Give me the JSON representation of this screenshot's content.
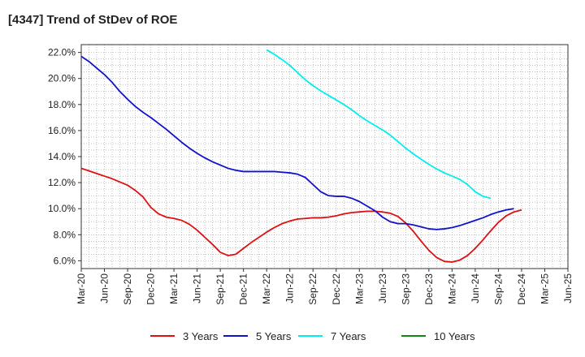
{
  "chart_data": {
    "type": "line",
    "title": "[4347]  Trend of StDev of ROE",
    "xlabel": "",
    "ylabel": "",
    "x_ticks": [
      "Mar-20",
      "Jun-20",
      "Sep-20",
      "Dec-20",
      "Mar-21",
      "Jun-21",
      "Sep-21",
      "Dec-21",
      "Mar-22",
      "Jun-22",
      "Sep-22",
      "Dec-22",
      "Mar-23",
      "Jun-23",
      "Sep-23",
      "Dec-23",
      "Mar-24",
      "Jun-24",
      "Sep-24",
      "Dec-24",
      "Mar-25",
      "Jun-25"
    ],
    "y_ticks": [
      "6.0%",
      "8.0%",
      "10.0%",
      "12.0%",
      "14.0%",
      "16.0%",
      "18.0%",
      "20.0%",
      "22.0%"
    ],
    "ylim": [
      5.4,
      22.6
    ],
    "grid": true,
    "legend_position": "bottom",
    "series": [
      {
        "name": "3 Years",
        "color": "#dd1111",
        "start_index": 0,
        "values": [
          13.1,
          12.9,
          12.7,
          12.5,
          12.3,
          12.05,
          11.8,
          11.4,
          10.9,
          10.1,
          9.6,
          9.35,
          9.25,
          9.1,
          8.8,
          8.35,
          7.8,
          7.25,
          6.65,
          6.4,
          6.5,
          6.95,
          7.4,
          7.8,
          8.2,
          8.55,
          8.85,
          9.05,
          9.2,
          9.25,
          9.3,
          9.3,
          9.35,
          9.45,
          9.6,
          9.7,
          9.75,
          9.8,
          9.8,
          9.75,
          9.65,
          9.4,
          8.9,
          8.25,
          7.5,
          6.8,
          6.25,
          5.95,
          5.9,
          6.05,
          6.4,
          6.95,
          7.6,
          8.3,
          8.95,
          9.45,
          9.75,
          9.9
        ]
      },
      {
        "name": "5 Years",
        "color": "#1111cc",
        "start_index": 0,
        "values": [
          21.7,
          21.3,
          20.8,
          20.3,
          19.7,
          19.0,
          18.4,
          17.85,
          17.4,
          17.0,
          16.55,
          16.1,
          15.6,
          15.1,
          14.65,
          14.25,
          13.9,
          13.6,
          13.35,
          13.1,
          12.95,
          12.85,
          12.85,
          12.85,
          12.85,
          12.85,
          12.8,
          12.75,
          12.65,
          12.4,
          11.85,
          11.3,
          11.0,
          10.95,
          10.95,
          10.8,
          10.55,
          10.2,
          9.85,
          9.35,
          9.0,
          8.85,
          8.85,
          8.75,
          8.6,
          8.45,
          8.4,
          8.45,
          8.55,
          8.7,
          8.9,
          9.1,
          9.3,
          9.55,
          9.75,
          9.9,
          10.0
        ]
      },
      {
        "name": "7 Years",
        "color": "#00eeee",
        "start_index": 24,
        "values": [
          22.2,
          21.85,
          21.45,
          21.0,
          20.45,
          19.9,
          19.45,
          19.05,
          18.7,
          18.35,
          18.0,
          17.6,
          17.15,
          16.75,
          16.4,
          16.05,
          15.65,
          15.15,
          14.65,
          14.2,
          13.8,
          13.4,
          13.05,
          12.75,
          12.5,
          12.25,
          11.85,
          11.3,
          10.95,
          10.8
        ]
      },
      {
        "name": "10 Years",
        "color": "#118811",
        "start_index": 0,
        "values": []
      }
    ]
  }
}
